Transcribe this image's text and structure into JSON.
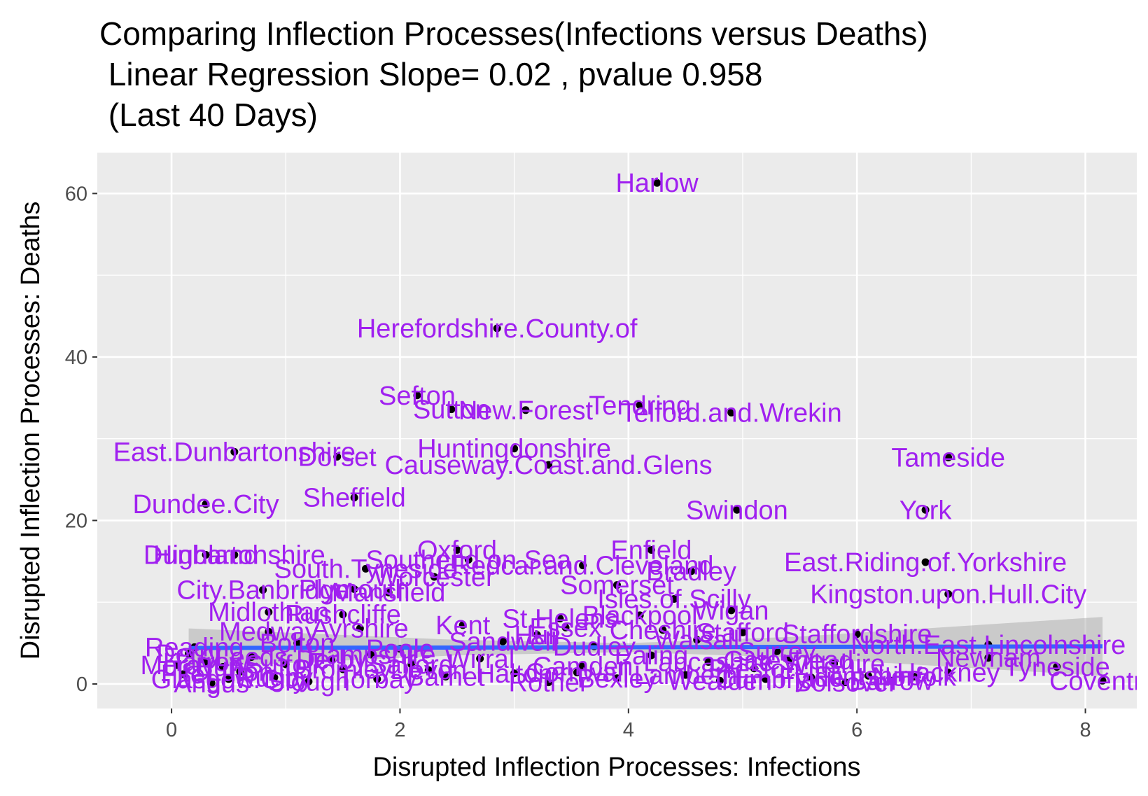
{
  "chart_data": {
    "type": "scatter",
    "title_lines": [
      "Comparing Inflection Processes(Infections versus Deaths)",
      " Linear Regression Slope= 0.02 , pvalue 0.958",
      " (Last 40 Days)"
    ],
    "xlabel": "Disrupted Inflection Processes: Infections",
    "ylabel": "Disrupted Inflection Processes: Deaths",
    "xlim": [
      -0.65,
      8.45
    ],
    "ylim": [
      -3,
      65
    ],
    "x_ticks": [
      0,
      2,
      4,
      6,
      8
    ],
    "y_ticks": [
      0,
      20,
      40,
      60
    ],
    "grid": true,
    "legend": "none",
    "colors": {
      "panel": "#ebebeb",
      "grid": "#ffffff",
      "point": "#000000",
      "label": "#a020f0",
      "regression_line": "#3366ff",
      "confidence_band": "#999999"
    },
    "regression": {
      "x_start": 0.15,
      "x_end": 8.15,
      "y_start": 4.4,
      "y_end": 4.6,
      "band": [
        [
          0.15,
          2.0,
          6.8
        ],
        [
          2.5,
          3.5,
          5.4
        ],
        [
          4.0,
          3.9,
          5.0
        ],
        [
          5.5,
          3.2,
          5.8
        ],
        [
          8.15,
          1.0,
          8.2
        ]
      ]
    },
    "points": [
      {
        "label": "Harlow",
        "x": 4.25,
        "y": 61.3
      },
      {
        "label": "Herefordshire.County.of",
        "x": 2.85,
        "y": 43.5
      },
      {
        "label": "Sefton",
        "x": 2.15,
        "y": 35.3
      },
      {
        "label": "Sutton",
        "x": 2.45,
        "y": 33.6
      },
      {
        "label": "New.Forest",
        "x": 3.1,
        "y": 33.5
      },
      {
        "label": "Tendring",
        "x": 4.1,
        "y": 34.1
      },
      {
        "label": "Telford.and.Wrekin",
        "x": 4.9,
        "y": 33.2
      },
      {
        "label": "East.Dunbartonshire",
        "x": 0.55,
        "y": 28.4
      },
      {
        "label": "Dorset",
        "x": 1.45,
        "y": 27.8
      },
      {
        "label": "Huntingdonshire",
        "x": 3.0,
        "y": 28.8
      },
      {
        "label": "Causeway.Coast.and.Glens",
        "x": 3.3,
        "y": 26.8
      },
      {
        "label": "Tameside",
        "x": 6.8,
        "y": 27.7
      },
      {
        "label": "Dundee.City",
        "x": 0.3,
        "y": 22.0
      },
      {
        "label": "Sheffield",
        "x": 1.6,
        "y": 22.8
      },
      {
        "label": "Swindon",
        "x": 4.95,
        "y": 21.3
      },
      {
        "label": "York",
        "x": 6.6,
        "y": 21.3
      },
      {
        "label": "Enfield",
        "x": 4.2,
        "y": 16.4
      },
      {
        "label": "Oxford",
        "x": 2.5,
        "y": 16.4
      },
      {
        "label": "Highland",
        "x": 0.3,
        "y": 15.8
      },
      {
        "label": "Dunbartonshire",
        "x": 0.55,
        "y": 15.8
      },
      {
        "label": "Southend.on.Sea",
        "x": 2.6,
        "y": 15.2
      },
      {
        "label": "Redcar.and.Cleveland",
        "x": 3.6,
        "y": 14.5
      },
      {
        "label": "Bradley",
        "x": 4.55,
        "y": 13.8
      },
      {
        "label": "South.Tyneside",
        "x": 1.7,
        "y": 14.1
      },
      {
        "label": "Worcester",
        "x": 2.3,
        "y": 13.1
      },
      {
        "label": "East.Riding.of.Yorkshire",
        "x": 6.6,
        "y": 14.9
      },
      {
        "label": "Somerset",
        "x": 3.9,
        "y": 12.1
      },
      {
        "label": "Kingston.upon.Hull.City",
        "x": 6.8,
        "y": 11.0
      },
      {
        "label": "City.Banbridge",
        "x": 0.8,
        "y": 11.5
      },
      {
        "label": "Plymouth",
        "x": 1.6,
        "y": 11.6
      },
      {
        "label": "Mansfield",
        "x": 1.9,
        "y": 11.2
      },
      {
        "label": "Isles.of.Scilly",
        "x": 4.4,
        "y": 10.4
      },
      {
        "label": "Midlothian",
        "x": 0.85,
        "y": 8.8
      },
      {
        "label": "Rushcliffe",
        "x": 1.5,
        "y": 8.5
      },
      {
        "label": "Wigan",
        "x": 4.9,
        "y": 9.0
      },
      {
        "label": "St.Helens",
        "x": 3.4,
        "y": 8.0
      },
      {
        "label": "Blackpool",
        "x": 4.1,
        "y": 8.4
      },
      {
        "label": "Medway",
        "x": 0.85,
        "y": 6.4
      },
      {
        "label": "Ayrshire",
        "x": 1.65,
        "y": 6.8
      },
      {
        "label": "Stafford",
        "x": 5.0,
        "y": 6.3
      },
      {
        "label": "Staffordshire",
        "x": 6.0,
        "y": 6.1
      },
      {
        "label": "North.East.Lincolnshire",
        "x": 7.15,
        "y": 4.8
      },
      {
        "label": "Newham",
        "x": 7.15,
        "y": 3.2
      },
      {
        "label": "Hackney",
        "x": 6.8,
        "y": 1.4
      },
      {
        "label": "Tyneside",
        "x": 7.75,
        "y": 2.1
      },
      {
        "label": "Coventry",
        "x": 8.15,
        "y": 0.4
      },
      {
        "label": "Gateshead",
        "x": 5.4,
        "y": 2.9
      },
      {
        "label": "Flintshire",
        "x": 6.1,
        "y": 1.0
      },
      {
        "label": "Bolsover",
        "x": 5.9,
        "y": 0.2
      },
      {
        "label": "Barrow",
        "x": 6.3,
        "y": 0.4
      },
      {
        "label": "Reading",
        "x": 0.2,
        "y": 4.5
      },
      {
        "label": "Derry",
        "x": 0.15,
        "y": 3.7
      },
      {
        "label": "Harrow",
        "x": 0.3,
        "y": 2.7
      },
      {
        "label": "Bury",
        "x": 0.45,
        "y": 2.1
      },
      {
        "label": "Luton",
        "x": 0.6,
        "y": 1.5
      },
      {
        "label": "Rugby",
        "x": 0.9,
        "y": 0.8
      },
      {
        "label": "Slough",
        "x": 1.2,
        "y": 0.3
      },
      {
        "label": "Bromley",
        "x": 1.5,
        "y": 1.8
      },
      {
        "label": "Torbay",
        "x": 1.8,
        "y": 0.6
      },
      {
        "label": "Salford",
        "x": 2.1,
        "y": 2.4
      },
      {
        "label": "Barnet",
        "x": 2.4,
        "y": 0.9
      },
      {
        "label": "Wirral",
        "x": 2.7,
        "y": 3.1
      },
      {
        "label": "Halton",
        "x": 3.0,
        "y": 1.3
      },
      {
        "label": "Rother",
        "x": 3.3,
        "y": 0.2
      },
      {
        "label": "Camden",
        "x": 3.6,
        "y": 2.2
      },
      {
        "label": "Bexley",
        "x": 3.9,
        "y": 0.7
      },
      {
        "label": "Ealing",
        "x": 4.2,
        "y": 3.5
      },
      {
        "label": "Lambeth",
        "x": 4.5,
        "y": 1.1
      },
      {
        "label": "Wealden",
        "x": 4.8,
        "y": 0.4
      },
      {
        "label": "Preston",
        "x": 5.1,
        "y": 1.9
      },
      {
        "label": "Fylde",
        "x": 5.6,
        "y": 0.8
      },
      {
        "label": "Poole",
        "x": 2.0,
        "y": 4.3
      },
      {
        "label": "Sandwell",
        "x": 2.9,
        "y": 5.2
      },
      {
        "label": "Dudley",
        "x": 3.7,
        "y": 4.6
      },
      {
        "label": "Walsall",
        "x": 4.6,
        "y": 5.4
      },
      {
        "label": "Bolton",
        "x": 1.1,
        "y": 5.0
      },
      {
        "label": "Leeds",
        "x": 0.7,
        "y": 3.3
      },
      {
        "label": "Derby",
        "x": 1.4,
        "y": 3.0
      },
      {
        "label": "Hull",
        "x": 3.2,
        "y": 6.0
      },
      {
        "label": "Kent",
        "x": 2.55,
        "y": 7.2
      },
      {
        "label": "Essex",
        "x": 3.45,
        "y": 6.9
      },
      {
        "label": "Cheshire",
        "x": 4.3,
        "y": 6.6
      },
      {
        "label": "Surrey",
        "x": 5.3,
        "y": 4.0
      },
      {
        "label": "Wiltshire",
        "x": 5.8,
        "y": 2.5
      },
      {
        "label": "Norfolk",
        "x": 6.5,
        "y": 0.9
      },
      {
        "label": "Suffolk",
        "x": 1.0,
        "y": 2.4
      },
      {
        "label": "Devon",
        "x": 2.25,
        "y": 1.7
      },
      {
        "label": "Cornwall",
        "x": 3.55,
        "y": 1.4
      },
      {
        "label": "Lancashire",
        "x": 4.7,
        "y": 2.7
      },
      {
        "label": "Cumbria",
        "x": 5.2,
        "y": 0.6
      },
      {
        "label": "Hampshire",
        "x": 1.75,
        "y": 3.6
      },
      {
        "label": "Glasgow.City",
        "x": 0.5,
        "y": 0.6
      },
      {
        "label": "Fife",
        "x": 0.1,
        "y": 1.2
      },
      {
        "label": "Angus",
        "x": 0.35,
        "y": 0.1
      },
      {
        "label": "Moray",
        "x": 0.05,
        "y": 2.3
      }
    ]
  }
}
